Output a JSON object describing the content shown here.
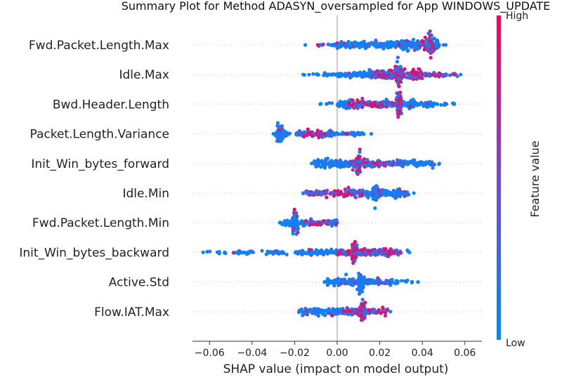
{
  "chart_data": {
    "type": "scatter",
    "title": "Summary Plot for Method ADASYN_oversampled for App WINDOWS_UPDATE",
    "xlabel": "SHAP value (impact on model output)",
    "xlim": [
      -0.068,
      0.068
    ],
    "xticks": [
      -0.06,
      -0.04,
      -0.02,
      0.0,
      0.02,
      0.04,
      0.06
    ],
    "xtick_labels": [
      "−0.06",
      "−0.04",
      "−0.02",
      "0.00",
      "0.02",
      "0.04",
      "0.06"
    ],
    "grid": false,
    "colorbar": {
      "label": "Feature value",
      "high_label": "High",
      "low_label": "Low",
      "low_color": "#008afb",
      "high_color": "#ff0052"
    },
    "features": [
      {
        "name": "Fwd.Packet.Length.Max",
        "min": -0.015,
        "max": 0.051,
        "dense": [
          [
            -0.01,
            0.0,
            0.2
          ],
          [
            0.0,
            0.03,
            0.7
          ],
          [
            0.03,
            0.048,
            1.0
          ]
        ],
        "peak": 0.044,
        "high_region": [
          0.038,
          0.046
        ]
      },
      {
        "name": "Idle.Max",
        "min": -0.016,
        "max": 0.058,
        "dense": [
          [
            -0.012,
            0.0,
            0.2
          ],
          [
            0.0,
            0.022,
            0.6
          ],
          [
            0.014,
            0.04,
            1.0
          ],
          [
            0.04,
            0.056,
            0.3
          ]
        ],
        "peak": 0.029,
        "high_region": [
          0.016,
          0.056
        ]
      },
      {
        "name": "Bwd.Header.Length",
        "min": -0.008,
        "max": 0.055,
        "dense": [
          [
            0.0,
            0.03,
            0.8
          ],
          [
            0.03,
            0.046,
            0.7
          ]
        ],
        "peak": 0.029,
        "high_region": [
          0.006,
          0.03
        ]
      },
      {
        "name": "Packet.Length.Variance",
        "min": -0.03,
        "max": 0.016,
        "dense": [
          [
            -0.029,
            -0.024,
            0.7
          ],
          [
            -0.018,
            0.0,
            0.6
          ],
          [
            0.0,
            0.012,
            0.3
          ]
        ],
        "peak": -0.027,
        "high_region": [
          -0.018,
          -0.005
        ]
      },
      {
        "name": "Init_Win_bytes_forward",
        "min": -0.012,
        "max": 0.048,
        "dense": [
          [
            -0.011,
            0.02,
            0.8
          ],
          [
            0.02,
            0.046,
            0.6
          ]
        ],
        "peak": 0.01,
        "high_region": [
          0.005,
          0.03
        ]
      },
      {
        "name": "Idle.Min",
        "min": -0.016,
        "max": 0.036,
        "dense": [
          [
            -0.014,
            0.0,
            0.5
          ],
          [
            0.0,
            0.034,
            0.8
          ]
        ],
        "peak": 0.018,
        "high_region": [
          -0.016,
          0.012
        ]
      },
      {
        "name": "Fwd.Packet.Length.Min",
        "min": -0.027,
        "max": 0.0,
        "dense": [
          [
            -0.026,
            -0.012,
            0.6
          ],
          [
            -0.012,
            0.0,
            0.6
          ]
        ],
        "peak": -0.02,
        "high_region": [
          -0.015,
          -0.004
        ]
      },
      {
        "name": "Init_Win_bytes_backward",
        "min": -0.063,
        "max": 0.034,
        "dense": [
          [
            -0.05,
            -0.04,
            0.3
          ],
          [
            -0.034,
            -0.025,
            0.4
          ],
          [
            -0.02,
            0.0,
            0.6
          ],
          [
            0.0,
            0.03,
            0.7
          ]
        ],
        "peak": 0.008,
        "high_region": [
          0.0,
          0.032
        ]
      },
      {
        "name": "Active.Std",
        "min": -0.006,
        "max": 0.038,
        "dense": [
          [
            -0.005,
            0.026,
            0.7
          ]
        ],
        "peak": 0.011,
        "high_region": [
          0.018,
          0.025
        ]
      },
      {
        "name": "Flow.IAT.Max",
        "min": -0.018,
        "max": 0.025,
        "dense": [
          [
            -0.017,
            0.024,
            0.7
          ]
        ],
        "peak": 0.012,
        "high_region": [
          0.003,
          0.024
        ]
      }
    ]
  }
}
